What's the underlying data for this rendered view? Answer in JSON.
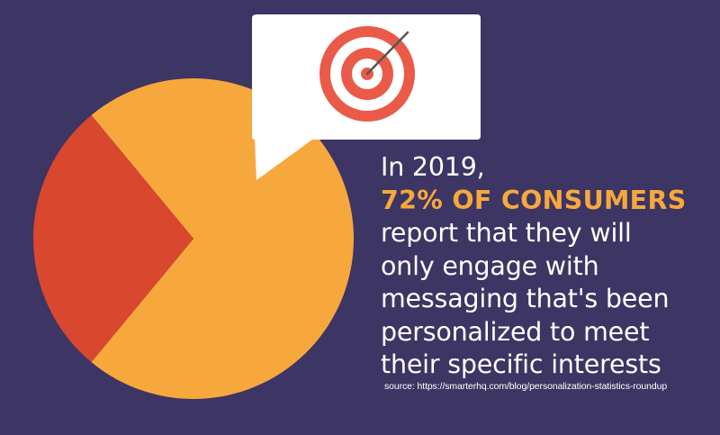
{
  "chart_data": {
    "type": "pie",
    "slices": [
      {
        "value": 72,
        "color": "#f7a83d"
      },
      {
        "value": 28,
        "color": "#d9472f"
      }
    ]
  },
  "callout": {
    "icon": "target-icon",
    "ring_colors": [
      "#ea5a48",
      "#ffffff"
    ]
  },
  "text": {
    "line1": "In 2019,",
    "highlight": "72% OF CONSUMERS",
    "line3": "report that they will",
    "line4": "only engage with",
    "line5": "messaging that's been",
    "line6": "personalized to meet",
    "line7": "their specific interests"
  },
  "source": "source: https://smarterhq.com/blog/personalization-statistics-roundup",
  "colors": {
    "background": "#3d3563",
    "accent": "#f7a83d",
    "secondary": "#d9472f"
  }
}
